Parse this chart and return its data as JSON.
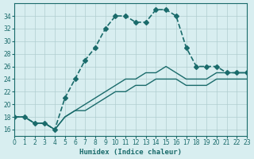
{
  "bg_color": "#d8eef0",
  "grid_color": "#b0cdd0",
  "line_color": "#1a6b6b",
  "xlabel": "Humidex (Indice chaleur)",
  "ylim": [
    15,
    36
  ],
  "xlim": [
    0,
    23
  ],
  "yticks": [
    16,
    18,
    20,
    22,
    24,
    26,
    28,
    30,
    32,
    34
  ],
  "xticks": [
    0,
    1,
    2,
    3,
    4,
    5,
    6,
    7,
    8,
    9,
    10,
    11,
    12,
    13,
    14,
    15,
    16,
    17,
    18,
    19,
    20,
    21,
    22,
    23
  ],
  "series": [
    {
      "x": [
        0,
        1,
        2,
        3,
        4,
        5,
        6,
        7,
        8,
        9,
        10,
        11,
        12,
        13,
        14,
        15,
        16,
        17,
        18,
        19,
        20,
        21,
        22,
        23
      ],
      "y": [
        18,
        18,
        17,
        17,
        16,
        21,
        24,
        27,
        29,
        32,
        34,
        34,
        33,
        33,
        35,
        35,
        34,
        29,
        26,
        26,
        26,
        25,
        25,
        25
      ],
      "linestyle": "--",
      "marker": "D",
      "markersize": 3,
      "linewidth": 1.2
    },
    {
      "x": [
        0,
        1,
        2,
        3,
        4,
        5,
        6,
        7,
        8,
        9,
        10,
        11,
        12,
        13,
        14,
        15,
        16,
        17,
        18,
        19,
        20,
        21,
        22,
        23
      ],
      "y": [
        18,
        18,
        17,
        17,
        16,
        18,
        19,
        20,
        21,
        22,
        23,
        24,
        24,
        25,
        25,
        26,
        25,
        24,
        24,
        24,
        25,
        25,
        25,
        25
      ],
      "linestyle": "-",
      "marker": null,
      "markersize": 0,
      "linewidth": 1.0
    },
    {
      "x": [
        0,
        1,
        2,
        3,
        4,
        5,
        6,
        7,
        8,
        9,
        10,
        11,
        12,
        13,
        14,
        15,
        16,
        17,
        18,
        19,
        20,
        21,
        22,
        23
      ],
      "y": [
        18,
        18,
        17,
        17,
        16,
        18,
        19,
        19,
        20,
        21,
        22,
        22,
        23,
        23,
        24,
        24,
        24,
        23,
        23,
        23,
        24,
        24,
        24,
        24
      ],
      "linestyle": "-",
      "marker": null,
      "markersize": 0,
      "linewidth": 1.0
    }
  ]
}
